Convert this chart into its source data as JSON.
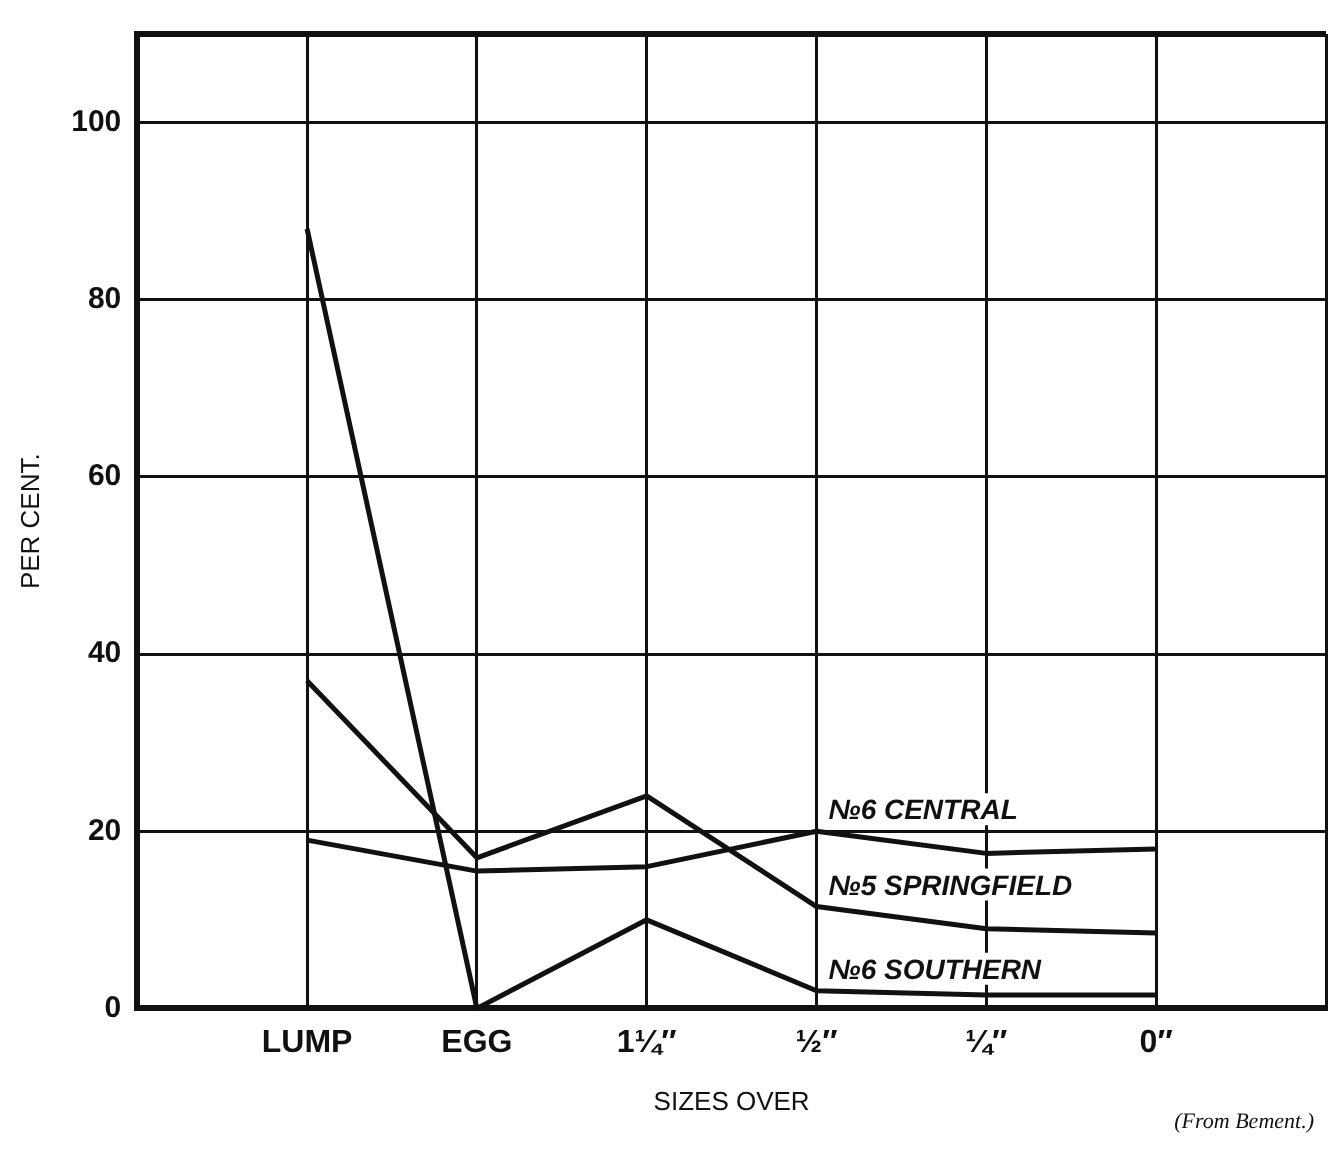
{
  "chart_data": {
    "type": "line",
    "xlabel": "SIZES OVER",
    "ylabel": "PER CENT.",
    "annotations": [
      "(From Bement.)"
    ],
    "categories": [
      null,
      "LUMP",
      "EGG",
      "1¼″",
      "½″",
      "¼″",
      "0″",
      null
    ],
    "series": [
      {
        "name": "№6 CENTRAL",
        "color": "#111111",
        "values": [
          null,
          19,
          15.5,
          16,
          20,
          17.5,
          18,
          null
        ]
      },
      {
        "name": "№5 SPRINGFIELD",
        "color": "#111111",
        "values": [
          null,
          37,
          17,
          24,
          11.5,
          9,
          8.5,
          null
        ]
      },
      {
        "name": "№6 SOUTHERN",
        "color": "#111111",
        "values": [
          null,
          88,
          0,
          10,
          2,
          1.5,
          1.5,
          null
        ]
      }
    ],
    "ylim": [
      0,
      110
    ],
    "yticks": [
      0,
      20,
      40,
      60,
      80,
      100
    ],
    "grid": true,
    "legend": false,
    "marker": "none",
    "line_style": "solid"
  }
}
